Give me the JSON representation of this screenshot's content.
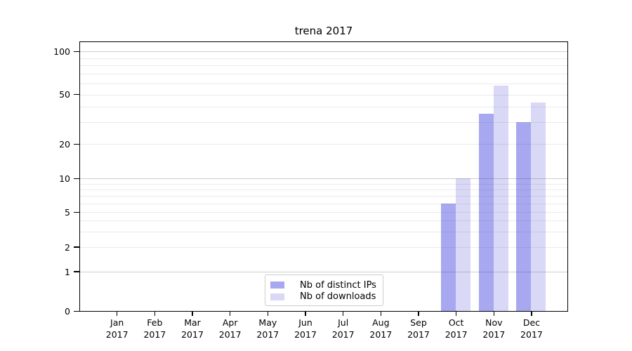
{
  "chart_data": {
    "type": "bar",
    "title": "trena 2017",
    "categories": [
      "Jan",
      "Feb",
      "Mar",
      "Apr",
      "May",
      "Jun",
      "Jul",
      "Aug",
      "Sep",
      "Oct",
      "Nov",
      "Dec"
    ],
    "x_sublabel": "2017",
    "series": [
      {
        "name": "Nb of distinct IPs",
        "color": "#a8a8f0",
        "values": [
          0,
          0,
          0,
          0,
          0,
          0,
          0,
          0,
          0,
          6,
          35,
          30
        ]
      },
      {
        "name": "Nb of downloads",
        "color": "#d9d9f7",
        "values": [
          0,
          0,
          0,
          0,
          0,
          0,
          0,
          0,
          0,
          10,
          58,
          43
        ]
      }
    ],
    "y_ticks": [
      0,
      1,
      2,
      5,
      10,
      20,
      50,
      100
    ],
    "y_major_gridlines": [
      1,
      10,
      100
    ],
    "y_minor_gridlines": [
      2,
      3,
      4,
      5,
      6,
      7,
      8,
      9,
      20,
      30,
      40,
      50,
      60,
      70,
      80,
      90
    ],
    "yscale": "log-like",
    "ylim": [
      0,
      115
    ],
    "grid": true,
    "legend": {
      "position": "lower center"
    }
  }
}
